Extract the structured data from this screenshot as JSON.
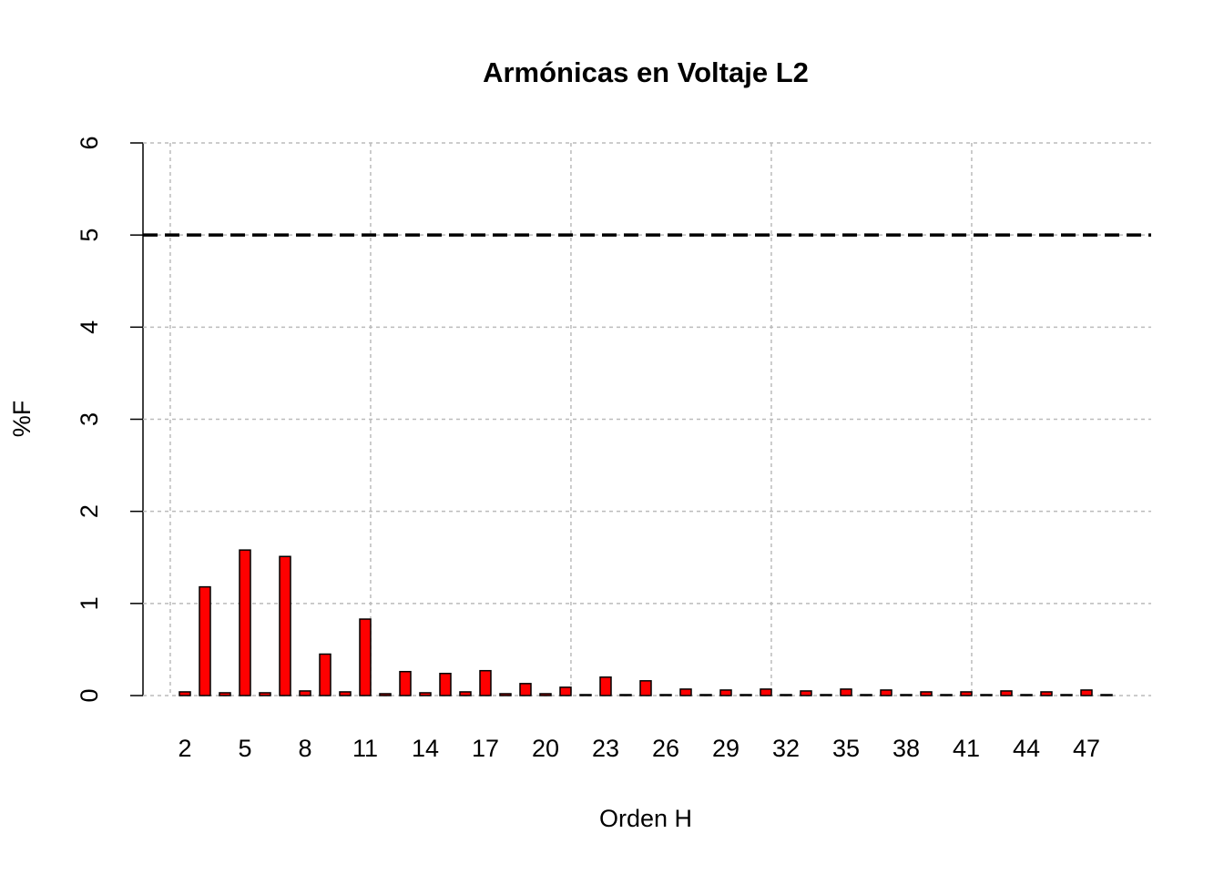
{
  "chart_data": {
    "type": "bar",
    "title": "Armónicas en Voltaje L2",
    "x_label": "Orden H",
    "y_label": "%F",
    "categories": [
      "2",
      null,
      null,
      "5",
      null,
      null,
      "8",
      null,
      null,
      "11",
      null,
      null,
      "14",
      null,
      null,
      "17",
      null,
      null,
      "20",
      null,
      null,
      "23",
      null,
      null,
      "26",
      null,
      null,
      "29",
      null,
      null,
      "32",
      null,
      null,
      "35",
      null,
      null,
      "38",
      null,
      null,
      "41",
      null,
      null,
      "44",
      null,
      null,
      "47",
      null
    ],
    "values": [
      0.04,
      1.18,
      0.03,
      1.58,
      0.03,
      1.51,
      0.05,
      0.45,
      0.04,
      0.83,
      0.02,
      0.26,
      0.03,
      0.24,
      0.04,
      0.27,
      0.02,
      0.13,
      0.02,
      0.09,
      0.01,
      0.2,
      0.01,
      0.16,
      0.01,
      0.07,
      0.01,
      0.06,
      0.01,
      0.07,
      0.01,
      0.05,
      0.01,
      0.07,
      0.01,
      0.06,
      0.01,
      0.04,
      0.01,
      0.04,
      0.01,
      0.05,
      0.01,
      0.04,
      0.01,
      0.06,
      0.01
    ],
    "color": "#ff0000",
    "reference_line": 5,
    "ylim": [
      0,
      6
    ],
    "yticks": [
      0,
      1,
      2,
      3,
      4,
      5,
      6
    ],
    "grid": true
  }
}
